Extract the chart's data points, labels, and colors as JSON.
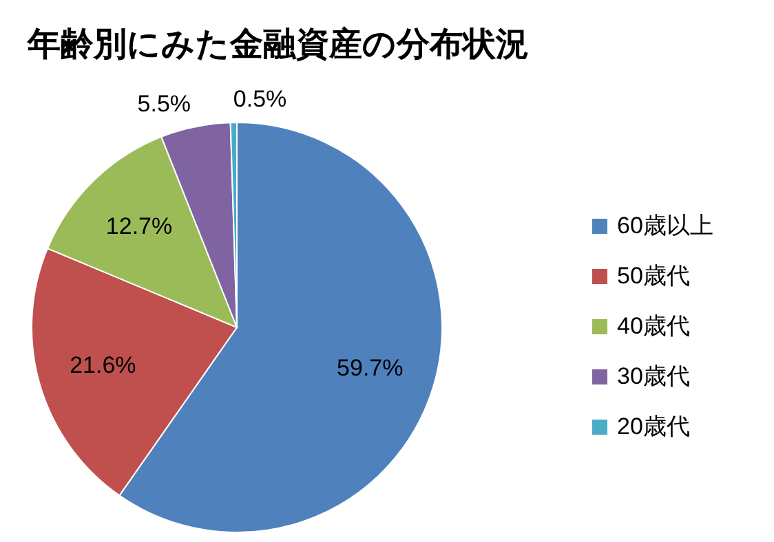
{
  "chart_data": {
    "type": "pie",
    "title": "年齢別にみた金融資産の分布状況",
    "categories": [
      "60歳以上",
      "50歳代",
      "40歳代",
      "30歳代",
      "20歳代"
    ],
    "values": [
      59.7,
      21.6,
      12.7,
      5.5,
      0.5
    ],
    "colors": [
      "#4f81bd",
      "#c0504d",
      "#9bbb59",
      "#8064a2",
      "#4bacc6"
    ],
    "value_labels": [
      "59.7%",
      "21.6%",
      "12.7%",
      "5.5%",
      "0.5%"
    ],
    "legend": "right"
  }
}
